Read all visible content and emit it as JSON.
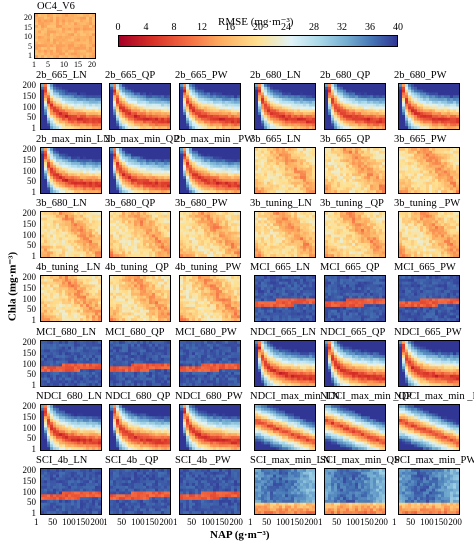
{
  "chart_data": {
    "type": "heatmap",
    "colorbar": {
      "title": "RMSE (mg·m⁻³)",
      "ticks": [
        "0",
        "4",
        "8",
        "12",
        "16",
        "20",
        "24",
        "28",
        "32",
        "36",
        "40"
      ],
      "range": [
        0,
        40
      ],
      "colors": [
        "#a50026",
        "#d73027",
        "#f46d43",
        "#fdae61",
        "#fee090",
        "#e0f3f8",
        "#abd9e9",
        "#74add1",
        "#4575b4",
        "#313695"
      ]
    },
    "xlabel": "NAP (g·m⁻³)",
    "ylabel": "Chla (mg·m⁻³)",
    "x_ticks": [
      "1",
      "50",
      "100",
      "150",
      "200"
    ],
    "y_ticks": [
      "200",
      "150",
      "100",
      "50",
      "1"
    ],
    "inset": {
      "title": "OC4_V6",
      "x_ticks": [
        "1",
        "5",
        "10",
        "15",
        "20"
      ],
      "y_ticks": [
        "20",
        "15",
        "10",
        "5",
        "1"
      ],
      "pattern": "uniform"
    },
    "panels": [
      {
        "title": "2b_665_LN",
        "pattern": "curve"
      },
      {
        "title": "2b_665_QP",
        "pattern": "curve"
      },
      {
        "title": "2b_665_PW",
        "pattern": "curve"
      },
      {
        "title": "2b_680_LN",
        "pattern": "curve"
      },
      {
        "title": "2b_680_QP",
        "pattern": "curve"
      },
      {
        "title": "2b_680_PW",
        "pattern": "curve"
      },
      {
        "title": "2b_max_min_LN",
        "pattern": "curve"
      },
      {
        "title": "2b_max_min_QP",
        "pattern": "curve"
      },
      {
        "title": "2b_max_min _PW",
        "pattern": "curve"
      },
      {
        "title": "3b_665_LN",
        "pattern": "warm"
      },
      {
        "title": "3b_665_QP",
        "pattern": "warm"
      },
      {
        "title": "3b_665_PW",
        "pattern": "warm"
      },
      {
        "title": "3b_680_LN",
        "pattern": "warm"
      },
      {
        "title": "3b_680_QP",
        "pattern": "warm"
      },
      {
        "title": "3b_680_PW",
        "pattern": "warm"
      },
      {
        "title": "3b_tuning_LN",
        "pattern": "warm"
      },
      {
        "title": "3b_tuning _QP",
        "pattern": "warm"
      },
      {
        "title": "3b_tuning _PW",
        "pattern": "warm"
      },
      {
        "title": "4b_tuning _LN",
        "pattern": "warm"
      },
      {
        "title": "4b_tuning _QP",
        "pattern": "warm"
      },
      {
        "title": "4b_tuning _PW",
        "pattern": "warm"
      },
      {
        "title": "MCI_665_LN",
        "pattern": "band"
      },
      {
        "title": "MCI_665_QP",
        "pattern": "band"
      },
      {
        "title": "MCI_665_PW",
        "pattern": "band"
      },
      {
        "title": "MCI_680_LN",
        "pattern": "band"
      },
      {
        "title": "MCI_680_QP",
        "pattern": "band"
      },
      {
        "title": "MCI_680_PW",
        "pattern": "band"
      },
      {
        "title": "NDCI_665_LN",
        "pattern": "curve"
      },
      {
        "title": "NDCI_665_QP",
        "pattern": "curve"
      },
      {
        "title": "NDCI_665_PW",
        "pattern": "curve"
      },
      {
        "title": "NDCI_680_LN",
        "pattern": "curve"
      },
      {
        "title": "NDCI_680_QP",
        "pattern": "curve"
      },
      {
        "title": "NDCI_680_PW",
        "pattern": "curve"
      },
      {
        "title": "NDCI_max_min_LN",
        "pattern": "diag"
      },
      {
        "title": "NDCI_max_min _QP",
        "pattern": "diag"
      },
      {
        "title": "NDCI_max_min _PW",
        "pattern": "diag"
      },
      {
        "title": "SCI_4b_LN",
        "pattern": "band"
      },
      {
        "title": "SCI_4b _QP",
        "pattern": "band"
      },
      {
        "title": "SCI_4b _PW",
        "pattern": "band"
      },
      {
        "title": "SCI_max_min_LN",
        "pattern": "cool"
      },
      {
        "title": "SCI_max_min_QP",
        "pattern": "cool"
      },
      {
        "title": "SCI_max_min_PW",
        "pattern": "cool"
      }
    ]
  }
}
